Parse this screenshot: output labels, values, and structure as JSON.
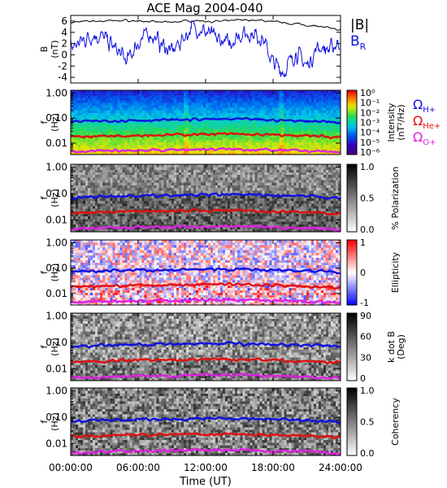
{
  "chart_data": {
    "type": "heatmap",
    "title": "ACE Mag 2004-040",
    "xlabel": "Time (UT)",
    "xticks": [
      "00:00:00",
      "06:00:00",
      "12:00:00",
      "18:00:00",
      "24:00:00"
    ],
    "xlim": [
      0,
      24
    ],
    "panel1": {
      "ylabel_top": "B",
      "ylabel_bot": "(nT)",
      "ylim": [
        -5,
        7
      ],
      "yticks": [
        "6",
        "4",
        "2",
        "0",
        "-2",
        "-4"
      ],
      "ytick_values": [
        6,
        4,
        2,
        0,
        -2,
        -4
      ],
      "legend": [
        {
          "main": "|B|",
          "sub": "",
          "color": "#000000"
        },
        {
          "main": "B",
          "sub": "R",
          "color": "#1010e0"
        }
      ],
      "series": [
        {
          "name": "|B|",
          "color": "#000000",
          "t": [
            0,
            1,
            2,
            3,
            4,
            5,
            6,
            7,
            8,
            9,
            10,
            11,
            12,
            13,
            14,
            15,
            16,
            17,
            18,
            19,
            20,
            21,
            22,
            23,
            24
          ],
          "v": [
            5.7,
            5.9,
            6.0,
            6.0,
            6.1,
            6.1,
            6.0,
            5.9,
            5.8,
            5.8,
            6.0,
            6.1,
            6.0,
            5.9,
            6.0,
            6.2,
            6.2,
            6.1,
            5.9,
            5.7,
            5.5,
            5.3,
            5.1,
            4.7,
            4.4
          ]
        },
        {
          "name": "B_R",
          "color": "#1010e0",
          "t": [
            0,
            1,
            2,
            3,
            4,
            5,
            6,
            7,
            8,
            9,
            10,
            11,
            12,
            13,
            14,
            15,
            16,
            17,
            18,
            19,
            20,
            21,
            22,
            23,
            24
          ],
          "v": [
            1.2,
            2.5,
            3.6,
            3.0,
            1.0,
            -1.2,
            2.2,
            3.9,
            2.0,
            0.5,
            3.0,
            5.1,
            4.0,
            2.8,
            2.0,
            3.6,
            3.9,
            3.2,
            -1.5,
            -3.0,
            0.5,
            -2.0,
            1.5,
            0.8,
            2.6
          ]
        }
      ]
    },
    "freq_axis": {
      "ylabel_top": "f",
      "ylabel_bot": "(Hz)",
      "yticks": [
        "1.00",
        "0.10",
        "0.01"
      ],
      "ytick_values": [
        1.0,
        0.1,
        0.01
      ],
      "ylim": [
        0.0035,
        1.3
      ],
      "scale": "log"
    },
    "cyclotron_lines": [
      {
        "name": "H+",
        "label_main": "Ω",
        "label_sub": "H+",
        "color": "#1010e0",
        "t": [
          0,
          2,
          4,
          6,
          8,
          10,
          12,
          14,
          16,
          18,
          20,
          22,
          24
        ],
        "f": [
          0.072,
          0.075,
          0.08,
          0.083,
          0.083,
          0.087,
          0.09,
          0.09,
          0.089,
          0.083,
          0.079,
          0.077,
          0.066
        ]
      },
      {
        "name": "He+",
        "label_main": "Ω",
        "label_sub": "He+",
        "color": "#e01010",
        "t": [
          0,
          2,
          4,
          6,
          8,
          10,
          12,
          14,
          16,
          18,
          20,
          22,
          24
        ],
        "f": [
          0.018,
          0.019,
          0.02,
          0.021,
          0.021,
          0.022,
          0.023,
          0.023,
          0.022,
          0.021,
          0.02,
          0.019,
          0.017
        ]
      },
      {
        "name": "O+",
        "label_main": "Ω",
        "label_sub": "O+",
        "color": "#e020e0",
        "t": [
          0,
          2,
          4,
          6,
          8,
          10,
          12,
          14,
          16,
          18,
          20,
          22,
          24
        ],
        "f": [
          0.0045,
          0.0047,
          0.005,
          0.0052,
          0.0052,
          0.0055,
          0.0057,
          0.0057,
          0.0056,
          0.0052,
          0.005,
          0.0048,
          0.0042
        ]
      }
    ],
    "panels": [
      {
        "key": "intensity",
        "colormap": "rainbow",
        "colorbar_title": "Intensity",
        "colorbar_units": "(nT²/Hz)",
        "colorbar_ticks": [
          "10⁰",
          "10⁻¹",
          "10⁻²",
          "10⁻³",
          "10⁻⁴",
          "10⁻⁵",
          "10⁻⁶"
        ],
        "clim_log10": [
          -6.5,
          0
        ]
      },
      {
        "key": "polarization",
        "colormap": "gray",
        "colorbar_title": "% Polarization",
        "colorbar_ticks": [
          "1.0",
          "0.5",
          "0.0"
        ],
        "clim": [
          0,
          1
        ]
      },
      {
        "key": "ellipticity",
        "colormap": "bwr",
        "colorbar_title": "Ellipticity",
        "colorbar_ticks": [
          "1",
          "0",
          "-1"
        ],
        "clim": [
          -1,
          1
        ]
      },
      {
        "key": "kdotb",
        "colormap": "gray",
        "colorbar_title": "k dot B",
        "colorbar_units": "(Deg)",
        "colorbar_ticks": [
          "90",
          "60",
          "30",
          "0"
        ],
        "clim": [
          0,
          90
        ]
      },
      {
        "key": "coherency",
        "colormap": "gray",
        "colorbar_title": "Coherency",
        "colorbar_ticks": [
          "1.0",
          "0.5",
          "0.0"
        ],
        "clim": [
          0,
          1
        ]
      }
    ]
  }
}
